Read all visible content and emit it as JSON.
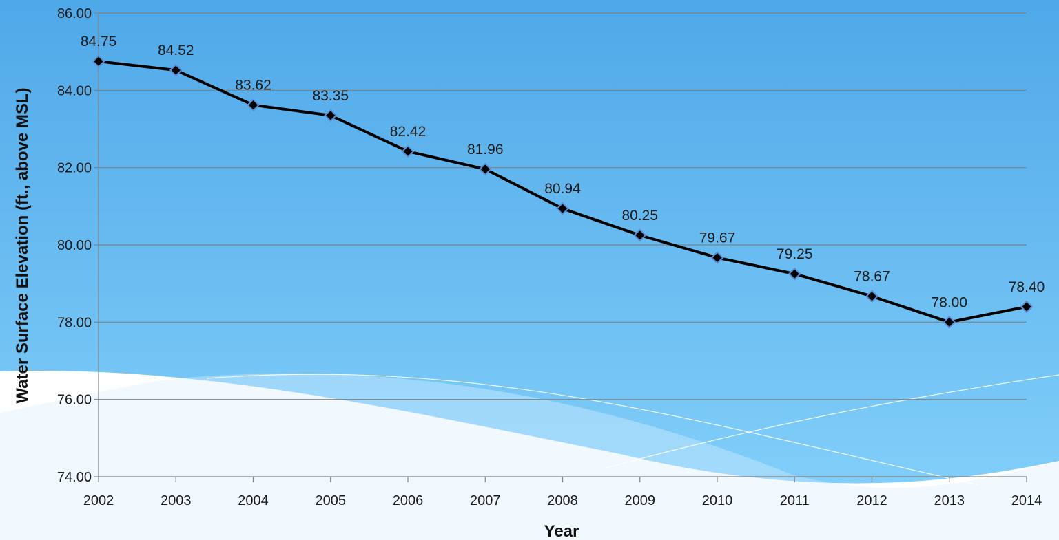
{
  "chart_data": {
    "type": "line",
    "categories": [
      "2002",
      "2003",
      "2004",
      "2005",
      "2006",
      "2007",
      "2008",
      "2009",
      "2010",
      "2011",
      "2012",
      "2013",
      "2014"
    ],
    "series": [
      {
        "values": [
          84.75,
          84.52,
          83.62,
          83.35,
          82.42,
          81.96,
          80.94,
          80.25,
          79.67,
          79.25,
          78.67,
          78.0,
          78.4
        ]
      }
    ],
    "data_labels": [
      "84.75",
      "84.52",
      "83.62",
      "83.35",
      "82.42",
      "81.96",
      "80.94",
      "80.25",
      "79.67",
      "79.25",
      "78.67",
      "78.00",
      "78.40"
    ],
    "y_ticks": [
      "86.00",
      "84.00",
      "82.00",
      "80.00",
      "78.00",
      "76.00",
      "74.00"
    ],
    "ylim": [
      74,
      86
    ],
    "xlabel": "Year",
    "ylabel": "Water Surface Elevation (ft., above MSL)",
    "grid": true,
    "legend": "none",
    "colors": {
      "line": "#000000",
      "marker_fill": "#000000",
      "marker_stroke": "#5b8fd6",
      "gridline": "#808080",
      "bg_top": "#4fa8e8",
      "bg_bottom": "#86d2fb"
    }
  }
}
